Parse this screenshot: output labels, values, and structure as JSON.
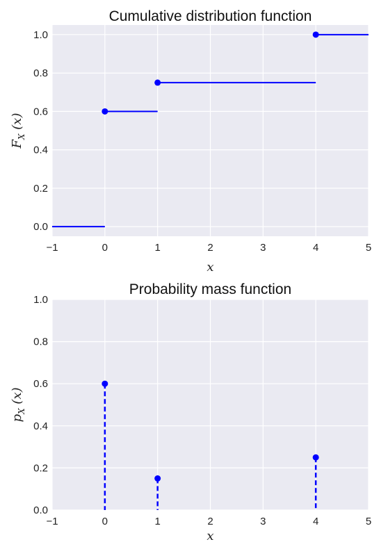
{
  "chart_data": [
    {
      "type": "line",
      "subtype": "step-cdf",
      "title": "Cumulative distribution function",
      "xlabel": "x",
      "ylabel": "F_X (x)",
      "xlim": [
        -1,
        5
      ],
      "ylim": [
        -0.05,
        1.05
      ],
      "xticks": [
        "−1",
        "0",
        "1",
        "2",
        "3",
        "4",
        "5"
      ],
      "yticks": [
        "0.0",
        "0.2",
        "0.4",
        "0.6",
        "0.8",
        "1.0"
      ],
      "segments": [
        {
          "x": [
            -1,
            0
          ],
          "y": 0.0
        },
        {
          "x": [
            0,
            1
          ],
          "y": 0.6
        },
        {
          "x": [
            1,
            4
          ],
          "y": 0.75
        },
        {
          "x": [
            4,
            5
          ],
          "y": 1.0
        }
      ],
      "points": [
        {
          "x": 0,
          "y": 0.6
        },
        {
          "x": 1,
          "y": 0.75
        },
        {
          "x": 4,
          "y": 1.0
        }
      ],
      "color": "#0000ff",
      "background": "#eaeaf2",
      "grid": true
    },
    {
      "type": "scatter",
      "subtype": "stem-pmf",
      "title": "Probability mass function",
      "xlabel": "x",
      "ylabel": "p_X (x)",
      "xlim": [
        -1,
        5
      ],
      "ylim": [
        0,
        1
      ],
      "xticks": [
        "−1",
        "0",
        "1",
        "2",
        "3",
        "4",
        "5"
      ],
      "yticks": [
        "0.0",
        "0.2",
        "0.4",
        "0.6",
        "0.8",
        "1.0"
      ],
      "x": [
        0,
        1,
        4
      ],
      "y": [
        0.6,
        0.15,
        0.25
      ],
      "color": "#0000ff",
      "background": "#eaeaf2",
      "grid": true,
      "stem_style": "dashed"
    }
  ]
}
